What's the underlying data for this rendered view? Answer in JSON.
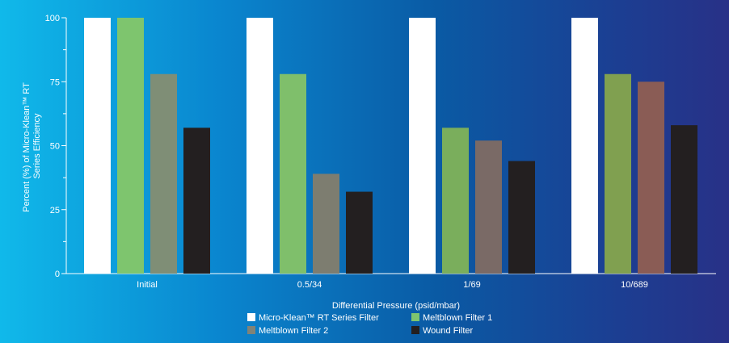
{
  "chart_data": {
    "type": "bar",
    "title": "",
    "xlabel": "Differential Pressure (psid/mbar)",
    "ylabel_lines": [
      "Percent (%) of Micro-Klean™ RT",
      "Series Efficiency"
    ],
    "categories": [
      "Initial",
      "0.5/34",
      "1/69",
      "10/689"
    ],
    "ylim": [
      0,
      100
    ],
    "yticks": [
      0,
      25,
      50,
      75,
      100
    ],
    "grid": false,
    "legend_position": "bottom-center",
    "series": [
      {
        "name": "Micro-Klean™ RT Series Filter",
        "values": [
          100,
          100,
          100,
          100
        ],
        "color": "#ffffff"
      },
      {
        "name": "Meltblown Filter 1",
        "values": [
          100,
          78,
          57,
          78
        ],
        "colors": [
          "#7ec56e",
          "#7fbf6b",
          "#7aae5c",
          "#80a050"
        ]
      },
      {
        "name": "Meltblown Filter 2",
        "values": [
          78,
          39,
          52,
          75
        ],
        "colors": [
          "#7f8e76",
          "#7d7d70",
          "#7a6a66",
          "#8a5c55"
        ]
      },
      {
        "name": "Wound Filter",
        "values": [
          57,
          32,
          44,
          58
        ],
        "color": "#231f20"
      }
    ],
    "legend_colors": [
      "#ffffff",
      "#7ec56e",
      "#7f8378",
      "#231f20"
    ]
  }
}
